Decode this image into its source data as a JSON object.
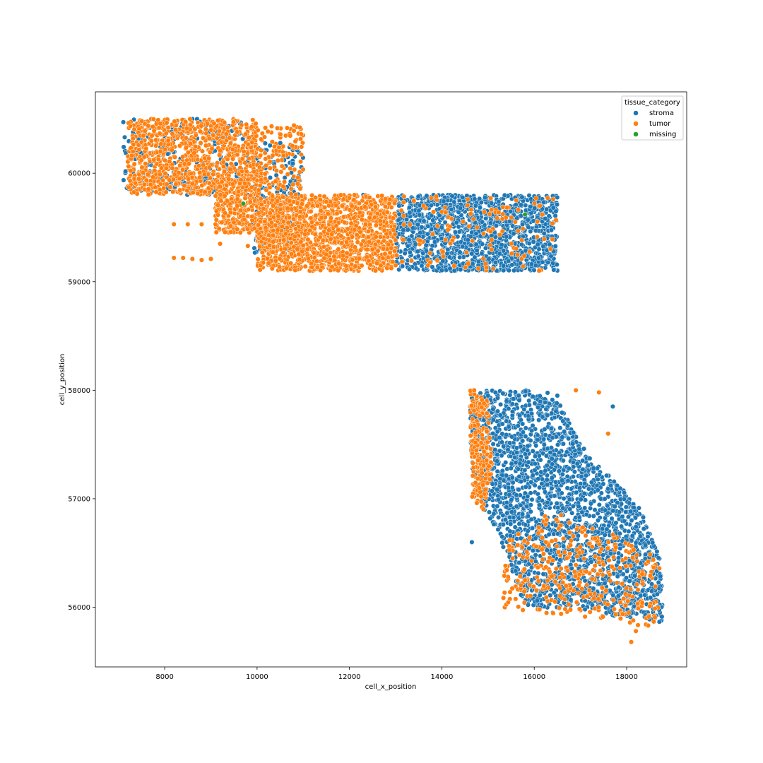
{
  "chart_data": {
    "type": "scatter",
    "title": "",
    "xlabel": "cell_x_position",
    "ylabel": "cell_y_position",
    "xlim": [
      6500,
      19300
    ],
    "ylim": [
      55450,
      60750
    ],
    "x_ticks": [
      8000,
      10000,
      12000,
      14000,
      16000,
      18000
    ],
    "y_ticks": [
      56000,
      57000,
      58000,
      59000,
      60000
    ],
    "grid": false,
    "legend": {
      "title": "tissue_category",
      "placement": "top-right",
      "entries": [
        {
          "name": "stroma",
          "color": "#1f77b4"
        },
        {
          "name": "tumor",
          "color": "#ff7f0e"
        },
        {
          "name": "missing",
          "color": "#2ca02c"
        }
      ]
    },
    "series": [
      {
        "name": "stroma",
        "color": "#1f77b4",
        "regions": [
          {
            "x_range": [
              13000,
              16500
            ],
            "y_range": [
              59100,
              59800
            ],
            "density": 1400
          },
          {
            "x_range": [
              9900,
              11000
            ],
            "y_range": [
              59250,
              60300
            ],
            "density": 180
          },
          {
            "x_range": [
              7100,
              9900
            ],
            "y_range": [
              59800,
              60500
            ],
            "density": 250
          }
        ],
        "polygon_regions": [
          {
            "polygon": [
              [
                14600,
                58000
              ],
              [
                15200,
                58000
              ],
              [
                16400,
                58000
              ],
              [
                17000,
                57500
              ],
              [
                17400,
                57300
              ],
              [
                17900,
                57100
              ],
              [
                18300,
                56900
              ],
              [
                18700,
                56500
              ],
              [
                18800,
                56100
              ],
              [
                18750,
                55800
              ],
              [
                18400,
                55900
              ],
              [
                17800,
                55900
              ],
              [
                17200,
                56000
              ],
              [
                16400,
                55980
              ],
              [
                15800,
                56000
              ],
              [
                15200,
                56700
              ],
              [
                14900,
                56900
              ],
              [
                14650,
                57300
              ],
              [
                14600,
                57700
              ]
            ],
            "density": 2300
          }
        ],
        "points": [
          [
            14650,
            56600
          ],
          [
            17100,
            55980
          ],
          [
            16400,
            55950
          ],
          [
            8600,
            60500
          ],
          [
            8700,
            60500
          ],
          [
            15000,
            57950
          ],
          [
            15400,
            57900
          ],
          [
            16500,
            57950
          ],
          [
            17700,
            57850
          ],
          [
            12300,
            59800
          ]
        ]
      },
      {
        "name": "tumor",
        "color": "#ff7f0e",
        "regions": [
          {
            "x_range": [
              7200,
              10000
            ],
            "y_range": [
              59800,
              60500
            ],
            "density": 900
          },
          {
            "x_range": [
              9100,
              10000
            ],
            "y_range": [
              59450,
              59950
            ],
            "density": 250
          },
          {
            "x_range": [
              10000,
              13000
            ],
            "y_range": [
              59100,
              59800
            ],
            "density": 1300
          },
          {
            "x_range": [
              10000,
              11000
            ],
            "y_range": [
              59250,
              60450
            ],
            "density": 250
          },
          {
            "x_range": [
              13000,
              16500
            ],
            "y_range": [
              59100,
              59800
            ],
            "density": 120
          }
        ],
        "polygon_regions": [
          {
            "polygon": [
              [
                14600,
                58000
              ],
              [
                15000,
                57900
              ],
              [
                15100,
                57200
              ],
              [
                14900,
                56900
              ],
              [
                14650,
                57000
              ]
            ],
            "density": 250
          },
          {
            "polygon": [
              [
                15300,
                56000
              ],
              [
                18800,
                55800
              ],
              [
                18700,
                56500
              ],
              [
                16400,
                56900
              ],
              [
                15400,
                56600
              ]
            ],
            "density": 350
          }
        ],
        "points": [
          [
            8200,
            59220
          ],
          [
            8400,
            59220
          ],
          [
            8600,
            59210
          ],
          [
            8800,
            59200
          ],
          [
            9000,
            59210
          ],
          [
            9200,
            59350
          ],
          [
            9800,
            59330
          ],
          [
            18100,
            55680
          ],
          [
            18200,
            55780
          ],
          [
            17600,
            57600
          ],
          [
            16900,
            58000
          ],
          [
            17400,
            57980
          ],
          [
            14700,
            58000
          ],
          [
            8200,
            59530
          ],
          [
            8500,
            59530
          ],
          [
            8800,
            59530
          ],
          [
            9100,
            59530
          ],
          [
            13700,
            59150
          ],
          [
            13900,
            59200
          ]
        ]
      },
      {
        "name": "missing",
        "color": "#2ca02c",
        "regions": [],
        "polygon_regions": [],
        "points": [
          [
            9700,
            59720
          ],
          [
            15800,
            59620
          ]
        ]
      }
    ]
  }
}
